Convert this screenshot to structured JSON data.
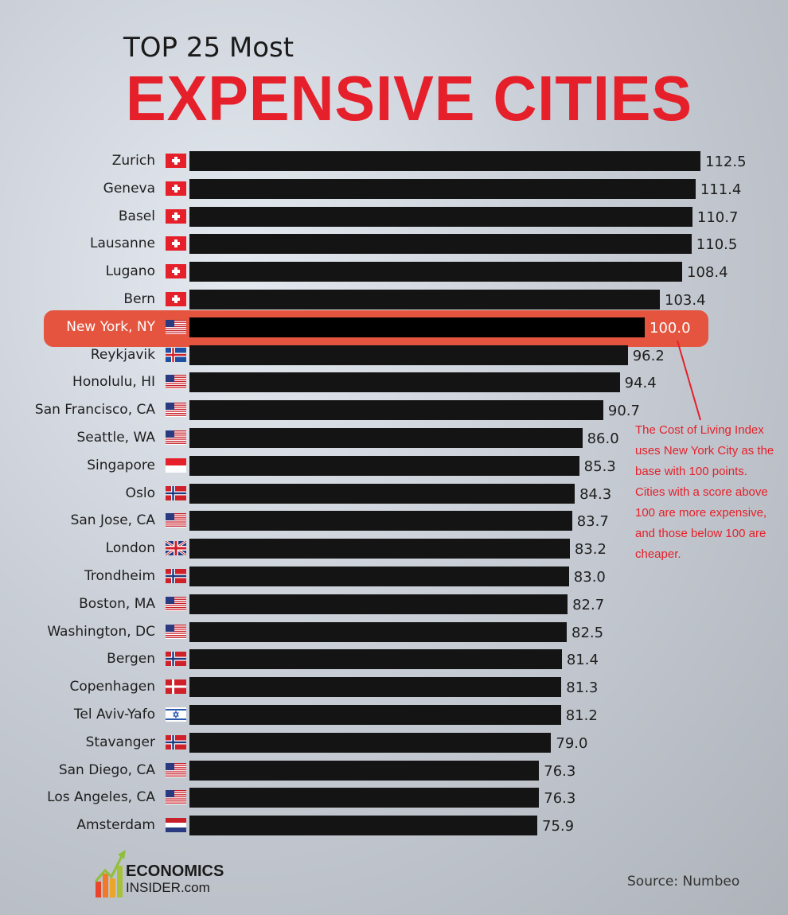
{
  "header": {
    "line1": "TOP 25 Most",
    "line2": "EXPENSIVE CITIES"
  },
  "annotation": "The Cost of Living Index uses New York City as the base with 100 points. Cities with a score above 100 are more expensive, and those below 100 are cheaper.",
  "source": "Source: Numbeo",
  "logo": {
    "line1": "ECONOMICS",
    "line2": "INSIDER.com"
  },
  "colors": {
    "accent": "#e5202a",
    "highlight": "#e4543e",
    "bar": "#141414"
  },
  "chart_data": {
    "type": "bar",
    "orientation": "horizontal",
    "highlight": "New York, NY",
    "categories": [
      "Zurich",
      "Geneva",
      "Basel",
      "Lausanne",
      "Lugano",
      "Bern",
      "New York, NY",
      "Reykjavik",
      "Honolulu, HI",
      "San Francisco, CA",
      "Seattle, WA",
      "Singapore",
      "Oslo",
      "San Jose, CA",
      "London",
      "Trondheim",
      "Boston, MA",
      "Washington, DC",
      "Bergen",
      "Copenhagen",
      "Tel Aviv-Yafo",
      "Stavanger",
      "San Diego, CA",
      "Los Angeles, CA",
      "Amsterdam"
    ],
    "values": [
      112.5,
      111.4,
      110.7,
      110.5,
      108.4,
      103.4,
      100.0,
      96.2,
      94.4,
      90.7,
      86.0,
      85.3,
      84.3,
      83.7,
      83.2,
      83.0,
      82.7,
      82.5,
      81.4,
      81.3,
      81.2,
      79.0,
      76.3,
      76.3,
      75.9
    ],
    "labels": [
      "112.5",
      "111.4",
      "110.7",
      "110.5",
      "108.4",
      "103.4",
      "100.0",
      "96.2",
      "94.4",
      "90.7",
      "86.0",
      "85.3",
      "84.3",
      "83.7",
      "83.2",
      "83.0",
      "82.7",
      "82.5",
      "81.4",
      "81.3",
      "81.2",
      "79.0",
      "76.3",
      "76.3",
      "75.9"
    ],
    "flags": [
      "ch",
      "ch",
      "ch",
      "ch",
      "ch",
      "ch",
      "us",
      "is",
      "us",
      "us",
      "us",
      "sg",
      "no",
      "us",
      "gb",
      "no",
      "us",
      "us",
      "no",
      "dk",
      "il",
      "no",
      "us",
      "us",
      "nl"
    ]
  }
}
